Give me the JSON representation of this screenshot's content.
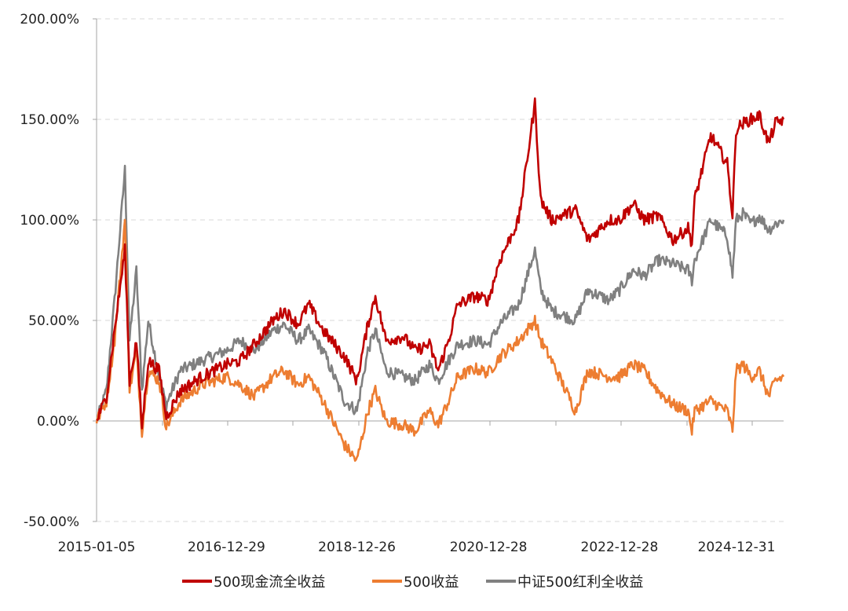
{
  "chart_data": {
    "type": "line",
    "title": "",
    "xlabel": "",
    "ylabel": "",
    "ylim": [
      -50,
      200
    ],
    "y_ticks": [
      "200.00%",
      "150.00%",
      "100.00%",
      "50.00%",
      "0.00%",
      "-50.00%"
    ],
    "x_ticks": [
      "2015-01-05",
      "2016-12-29",
      "2018-12-26",
      "2020-12-28",
      "2022-12-28",
      "2024-12-31"
    ],
    "x_range": [
      "2015-01-05",
      "2025-06-30"
    ],
    "grid": "horizontal-dashed",
    "legend_position": "bottom",
    "series": [
      {
        "name": "500现金流全收益",
        "color": "#C00000",
        "x": [
          "2015-01-05",
          "2015-03-01",
          "2015-04-15",
          "2015-06-12",
          "2015-07-08",
          "2015-08-15",
          "2015-09-15",
          "2015-10-20",
          "2015-12-20",
          "2016-01-28",
          "2016-04-15",
          "2016-08-15",
          "2016-12-29",
          "2017-03-15",
          "2017-06-01",
          "2017-09-15",
          "2017-11-15",
          "2018-02-01",
          "2018-04-01",
          "2018-06-20",
          "2018-10-18",
          "2018-12-26",
          "2019-02-25",
          "2019-04-08",
          "2019-06-06",
          "2019-09-10",
          "2019-11-15",
          "2020-02-03",
          "2020-03-23",
          "2020-05-20",
          "2020-07-10",
          "2020-10-15",
          "2020-12-28",
          "2021-03-01",
          "2021-06-15",
          "2021-09-13",
          "2021-10-15",
          "2021-12-15",
          "2022-04-27",
          "2022-07-05",
          "2022-10-31",
          "2022-12-28",
          "2023-03-15",
          "2023-05-15",
          "2023-08-01",
          "2023-10-23",
          "2024-01-15",
          "2024-02-05",
          "2024-02-20",
          "2024-05-20",
          "2024-08-20",
          "2024-09-18",
          "2024-10-08",
          "2024-11-15",
          "2024-12-31",
          "2025-02-15",
          "2025-04-08",
          "2025-05-15",
          "2025-06-30"
        ],
        "values": [
          0,
          12,
          45,
          85,
          20,
          40,
          -3,
          30,
          25,
          2,
          15,
          22,
          28,
          30,
          38,
          50,
          55,
          48,
          58,
          45,
          32,
          20,
          48,
          62,
          40,
          42,
          35,
          38,
          25,
          40,
          58,
          62,
          60,
          80,
          100,
          158,
          110,
          100,
          105,
          90,
          100,
          100,
          108,
          100,
          102,
          90,
          96,
          88,
          110,
          142,
          128,
          102,
          145,
          148,
          150,
          152,
          138,
          148,
          150
        ]
      },
      {
        "name": "500收益",
        "color": "#ED7D31",
        "x": [
          "2015-01-05",
          "2015-03-01",
          "2015-04-15",
          "2015-06-12",
          "2015-07-08",
          "2015-08-15",
          "2015-09-15",
          "2015-10-20",
          "2015-12-20",
          "2016-01-28",
          "2016-04-15",
          "2016-08-15",
          "2016-12-29",
          "2017-03-15",
          "2017-06-01",
          "2017-09-15",
          "2017-11-15",
          "2018-02-01",
          "2018-04-01",
          "2018-06-20",
          "2018-10-18",
          "2018-12-26",
          "2019-02-25",
          "2019-04-08",
          "2019-06-06",
          "2019-09-10",
          "2019-11-15",
          "2020-02-03",
          "2020-03-23",
          "2020-05-20",
          "2020-07-10",
          "2020-10-15",
          "2020-12-28",
          "2021-03-01",
          "2021-06-15",
          "2021-09-13",
          "2021-10-15",
          "2021-12-15",
          "2022-04-27",
          "2022-07-05",
          "2022-10-31",
          "2022-12-28",
          "2023-03-15",
          "2023-05-15",
          "2023-08-01",
          "2023-10-23",
          "2024-01-15",
          "2024-02-05",
          "2024-02-20",
          "2024-05-20",
          "2024-08-20",
          "2024-09-18",
          "2024-10-08",
          "2024-11-15",
          "2024-12-31",
          "2025-02-15",
          "2025-04-08",
          "2025-05-15",
          "2025-06-30"
        ],
        "values": [
          0,
          10,
          40,
          100,
          15,
          35,
          -5,
          25,
          20,
          -3,
          10,
          18,
          22,
          18,
          12,
          22,
          25,
          18,
          22,
          10,
          -12,
          -20,
          5,
          15,
          0,
          -2,
          -5,
          5,
          -2,
          10,
          22,
          26,
          24,
          32,
          40,
          50,
          40,
          30,
          5,
          25,
          22,
          22,
          28,
          25,
          15,
          8,
          5,
          -5,
          5,
          10,
          5,
          -5,
          25,
          28,
          22,
          25,
          12,
          20,
          22
        ]
      },
      {
        "name": "中证500红利全收益",
        "color": "#808080",
        "x": [
          "2015-01-05",
          "2015-03-01",
          "2015-04-15",
          "2015-06-12",
          "2015-07-08",
          "2015-08-15",
          "2015-09-15",
          "2015-10-20",
          "2015-12-20",
          "2016-01-28",
          "2016-04-15",
          "2016-08-15",
          "2016-12-29",
          "2017-03-15",
          "2017-06-01",
          "2017-09-15",
          "2017-11-15",
          "2018-02-01",
          "2018-04-01",
          "2018-06-20",
          "2018-10-18",
          "2018-12-26",
          "2019-02-25",
          "2019-04-08",
          "2019-06-06",
          "2019-09-10",
          "2019-11-15",
          "2020-02-03",
          "2020-03-23",
          "2020-05-20",
          "2020-07-10",
          "2020-10-15",
          "2020-12-28",
          "2021-03-01",
          "2021-06-15",
          "2021-09-13",
          "2021-10-15",
          "2021-12-15",
          "2022-04-27",
          "2022-07-05",
          "2022-10-31",
          "2022-12-28",
          "2023-03-15",
          "2023-05-15",
          "2023-08-01",
          "2023-10-23",
          "2024-01-15",
          "2024-02-05",
          "2024-02-20",
          "2024-05-20",
          "2024-08-20",
          "2024-09-18",
          "2024-10-08",
          "2024-11-15",
          "2024-12-31",
          "2025-02-15",
          "2025-04-08",
          "2025-05-15",
          "2025-06-30"
        ],
        "values": [
          0,
          15,
          60,
          125,
          40,
          75,
          15,
          50,
          22,
          8,
          25,
          30,
          35,
          40,
          35,
          45,
          48,
          40,
          45,
          35,
          10,
          5,
          35,
          45,
          25,
          22,
          20,
          28,
          20,
          30,
          38,
          40,
          38,
          48,
          58,
          85,
          65,
          55,
          50,
          65,
          60,
          65,
          75,
          72,
          80,
          78,
          75,
          70,
          80,
          100,
          92,
          72,
          100,
          103,
          98,
          102,
          95,
          98,
          100
        ]
      }
    ]
  }
}
